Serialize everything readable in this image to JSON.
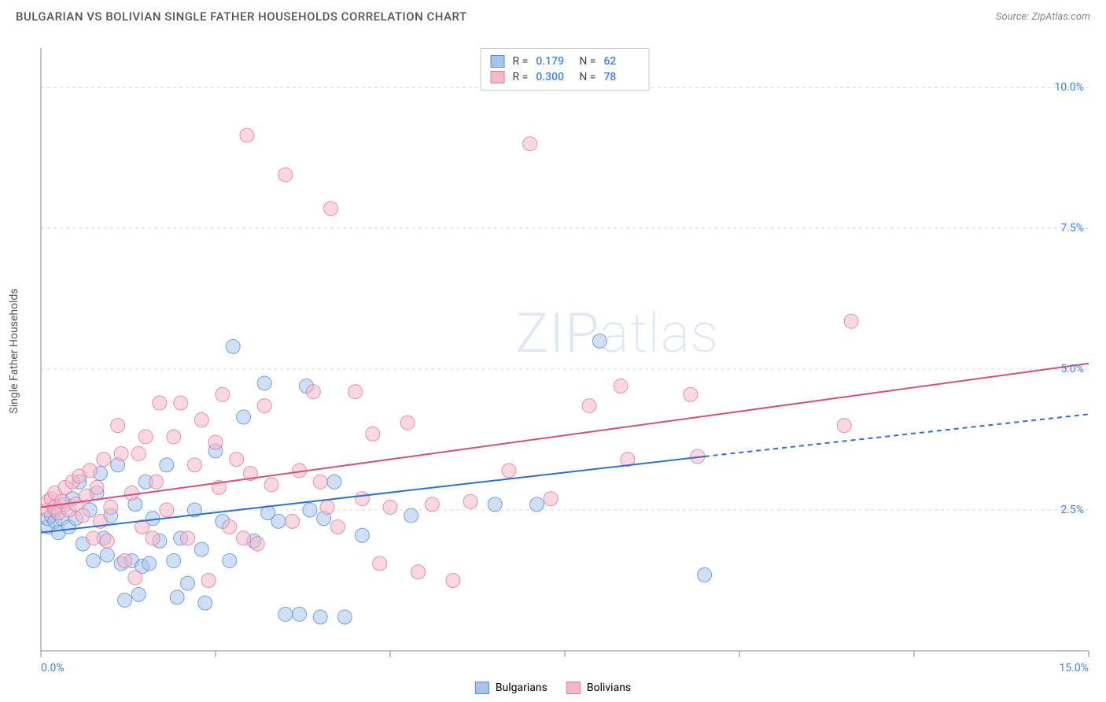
{
  "title": "BULGARIAN VS BOLIVIAN SINGLE FATHER HOUSEHOLDS CORRELATION CHART",
  "source_prefix": "Source: ",
  "source": "ZipAtlas.com",
  "ylabel": "Single Father Households",
  "watermark_bold": "ZIP",
  "watermark_thin": "atlas",
  "legend_top": {
    "r_label": "R =",
    "n_label": "N =",
    "rows": [
      {
        "fill": "#a7c5ec",
        "stroke": "#5a8fd4",
        "r": "0.179",
        "n": "62"
      },
      {
        "fill": "#f4b8c9",
        "stroke": "#e07a9a",
        "r": "0.300",
        "n": "78"
      }
    ]
  },
  "legend_bottom": {
    "items": [
      {
        "label": "Bulgarians",
        "fill": "#a7c5ec",
        "stroke": "#5a8fd4"
      },
      {
        "label": "Bolivians",
        "fill": "#f4b8c9",
        "stroke": "#e07a9a"
      }
    ]
  },
  "chart": {
    "type": "scatter",
    "xlim": [
      0,
      15
    ],
    "ylim": [
      0,
      10.7
    ],
    "x_ticks": [
      0,
      2.5,
      5,
      7.5,
      10,
      12.5,
      15
    ],
    "y_gridlines": [
      2.5,
      5.0,
      7.5,
      10.0
    ],
    "y_tick_labels": [
      "2.5%",
      "5.0%",
      "7.5%",
      "10.0%"
    ],
    "x_axis_labels": [
      {
        "value": 0,
        "text": "0.0%",
        "align": "left"
      },
      {
        "value": 15,
        "text": "15.0%",
        "align": "right"
      }
    ],
    "background_color": "#ffffff",
    "grid_color": "#d8d8d8",
    "axis_color": "#888888",
    "marker_radius": 9,
    "marker_opacity": 0.55,
    "series": [
      {
        "name": "Bulgarians",
        "fill": "#a7c5ec",
        "stroke": "#5a8fd4",
        "trend": {
          "start": [
            0,
            2.1
          ],
          "solid_end": [
            9.5,
            3.45
          ],
          "dash_end": [
            15,
            4.2
          ],
          "color": "#2f6fd0",
          "width": 2
        },
        "points": [
          [
            0.1,
            2.2
          ],
          [
            0.1,
            2.35
          ],
          [
            0.15,
            2.4
          ],
          [
            0.2,
            2.3
          ],
          [
            0.2,
            2.5
          ],
          [
            0.25,
            2.1
          ],
          [
            0.3,
            2.35
          ],
          [
            0.35,
            2.6
          ],
          [
            0.4,
            2.2
          ],
          [
            0.45,
            2.7
          ],
          [
            0.5,
            2.35
          ],
          [
            0.55,
            3.0
          ],
          [
            0.6,
            1.9
          ],
          [
            0.7,
            2.5
          ],
          [
            0.75,
            1.6
          ],
          [
            0.8,
            2.8
          ],
          [
            0.85,
            3.15
          ],
          [
            0.9,
            2.0
          ],
          [
            0.95,
            1.7
          ],
          [
            1.0,
            2.4
          ],
          [
            1.1,
            3.3
          ],
          [
            1.15,
            1.55
          ],
          [
            1.2,
            0.9
          ],
          [
            1.3,
            1.6
          ],
          [
            1.35,
            2.6
          ],
          [
            1.4,
            1.0
          ],
          [
            1.45,
            1.5
          ],
          [
            1.5,
            3.0
          ],
          [
            1.55,
            1.55
          ],
          [
            1.6,
            2.35
          ],
          [
            1.7,
            1.95
          ],
          [
            1.8,
            3.3
          ],
          [
            1.9,
            1.6
          ],
          [
            1.95,
            0.95
          ],
          [
            2.0,
            2.0
          ],
          [
            2.1,
            1.2
          ],
          [
            2.2,
            2.5
          ],
          [
            2.3,
            1.8
          ],
          [
            2.35,
            0.85
          ],
          [
            2.5,
            3.55
          ],
          [
            2.6,
            2.3
          ],
          [
            2.7,
            1.6
          ],
          [
            2.75,
            5.4
          ],
          [
            2.9,
            4.15
          ],
          [
            3.05,
            1.95
          ],
          [
            3.2,
            4.75
          ],
          [
            3.25,
            2.45
          ],
          [
            3.4,
            2.3
          ],
          [
            3.5,
            0.65
          ],
          [
            3.7,
            0.65
          ],
          [
            3.8,
            4.7
          ],
          [
            3.85,
            2.5
          ],
          [
            4.0,
            0.6
          ],
          [
            4.05,
            2.35
          ],
          [
            4.2,
            3.0
          ],
          [
            4.35,
            0.6
          ],
          [
            4.6,
            2.05
          ],
          [
            5.3,
            2.4
          ],
          [
            6.5,
            2.6
          ],
          [
            7.1,
            2.6
          ],
          [
            8.0,
            5.5
          ],
          [
            9.5,
            1.35
          ]
        ]
      },
      {
        "name": "Bolivians",
        "fill": "#f4b8c9",
        "stroke": "#e07a9a",
        "trend": {
          "start": [
            0,
            2.55
          ],
          "solid_end": [
            15,
            5.1
          ],
          "color": "#d94f7a",
          "width": 2
        },
        "points": [
          [
            0.1,
            2.5
          ],
          [
            0.1,
            2.65
          ],
          [
            0.15,
            2.7
          ],
          [
            0.2,
            2.55
          ],
          [
            0.2,
            2.8
          ],
          [
            0.25,
            2.45
          ],
          [
            0.3,
            2.65
          ],
          [
            0.35,
            2.9
          ],
          [
            0.4,
            2.5
          ],
          [
            0.45,
            3.0
          ],
          [
            0.5,
            2.6
          ],
          [
            0.55,
            3.1
          ],
          [
            0.6,
            2.4
          ],
          [
            0.65,
            2.75
          ],
          [
            0.7,
            3.2
          ],
          [
            0.75,
            2.0
          ],
          [
            0.8,
            2.9
          ],
          [
            0.85,
            2.3
          ],
          [
            0.9,
            3.4
          ],
          [
            0.95,
            1.95
          ],
          [
            1.0,
            2.55
          ],
          [
            1.1,
            4.0
          ],
          [
            1.15,
            3.5
          ],
          [
            1.2,
            1.6
          ],
          [
            1.3,
            2.8
          ],
          [
            1.35,
            1.3
          ],
          [
            1.4,
            3.5
          ],
          [
            1.45,
            2.2
          ],
          [
            1.5,
            3.8
          ],
          [
            1.6,
            2.0
          ],
          [
            1.65,
            3.0
          ],
          [
            1.7,
            4.4
          ],
          [
            1.8,
            2.5
          ],
          [
            1.9,
            3.8
          ],
          [
            2.0,
            4.4
          ],
          [
            2.1,
            2.0
          ],
          [
            2.2,
            3.3
          ],
          [
            2.3,
            4.1
          ],
          [
            2.4,
            1.25
          ],
          [
            2.5,
            3.7
          ],
          [
            2.55,
            2.9
          ],
          [
            2.6,
            4.55
          ],
          [
            2.7,
            2.2
          ],
          [
            2.8,
            3.4
          ],
          [
            2.9,
            2.0
          ],
          [
            2.95,
            9.15
          ],
          [
            3.0,
            3.15
          ],
          [
            3.1,
            1.9
          ],
          [
            3.2,
            4.35
          ],
          [
            3.3,
            2.95
          ],
          [
            3.5,
            8.45
          ],
          [
            3.6,
            2.3
          ],
          [
            3.7,
            3.2
          ],
          [
            3.9,
            4.6
          ],
          [
            4.0,
            3.0
          ],
          [
            4.1,
            2.55
          ],
          [
            4.15,
            7.85
          ],
          [
            4.25,
            2.2
          ],
          [
            4.5,
            4.6
          ],
          [
            4.6,
            2.7
          ],
          [
            4.75,
            3.85
          ],
          [
            4.85,
            1.55
          ],
          [
            5.0,
            2.55
          ],
          [
            5.25,
            4.05
          ],
          [
            5.4,
            1.4
          ],
          [
            5.6,
            2.6
          ],
          [
            5.9,
            1.25
          ],
          [
            6.15,
            2.65
          ],
          [
            6.7,
            3.2
          ],
          [
            7.0,
            9.0
          ],
          [
            7.3,
            2.7
          ],
          [
            7.85,
            4.35
          ],
          [
            8.3,
            4.7
          ],
          [
            8.4,
            3.4
          ],
          [
            9.3,
            4.55
          ],
          [
            9.4,
            3.45
          ],
          [
            11.5,
            4.0
          ],
          [
            11.6,
            5.85
          ]
        ]
      }
    ]
  }
}
